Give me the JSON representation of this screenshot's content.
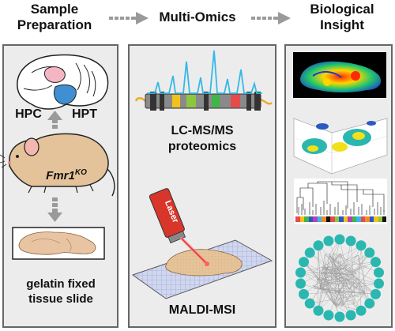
{
  "headers": {
    "sample_preparation": "Sample\nPreparation",
    "multi_omics": "Multi-Omics",
    "biological_insight": "Biological\nInsight"
  },
  "left_panel": {
    "hpc_label": "HPC",
    "hpt_label": "HPT",
    "mouse_label_main": "Fmr1",
    "mouse_label_sup": "KO",
    "slide_caption": "gelatin fixed\ntissue slide"
  },
  "middle_panel": {
    "lcms_label": "LC-MS/MS\nproteomics",
    "laser_label": "Laser",
    "maldi_label": "MALDI-MSI"
  },
  "colors": {
    "panel_bg": "#ececec",
    "arrow_gray": "#999999",
    "hpc_pink": "#f4b6c2",
    "hpt_blue": "#3f8fd2",
    "mouse_tan": "#e4c39a",
    "peak_cyan": "#35b8e8",
    "network_teal": "#2ab7b0"
  }
}
